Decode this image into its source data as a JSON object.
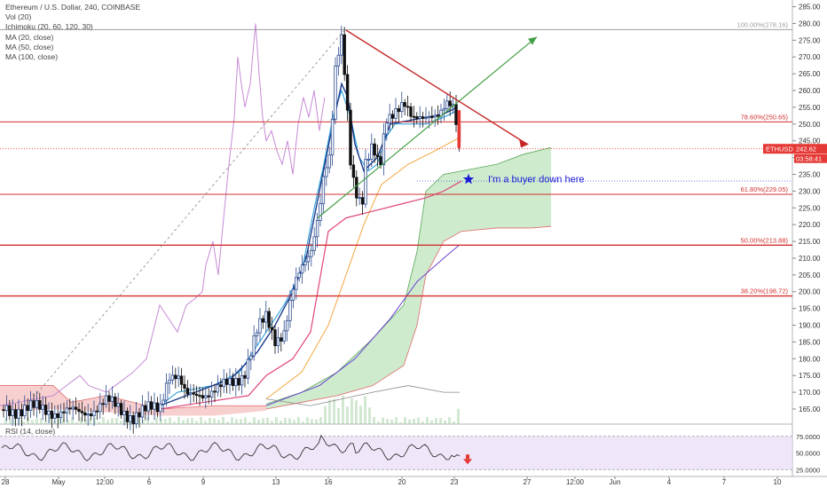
{
  "legend": {
    "symbol": "Ethereum / U.S. Dollar, 240, COINBASE",
    "vol": "Vol (20)",
    "ichimoku": "Ichimoku (20, 60, 120, 30)",
    "ma20": "MA (20, close)",
    "ma50": "MA (50, close)",
    "ma100": "MA (100, close)"
  },
  "rsi_label": "RSI (14, close)",
  "colors": {
    "up": "#2b4b8f",
    "down": "#111111",
    "ichimoku_cloud": "#b9e3b9",
    "ichimoku_cloud_red": "#f6c3c3",
    "ma20": "#1e9ad6",
    "ma50": "#f4a742",
    "ma100": "#6a3fd1",
    "lagging": "#c78ad6",
    "fib_line": "#d32f2f",
    "bear_arrow": "#c62828",
    "bull_arrow": "#43a047",
    "star": "#1a1ad6",
    "rsi_band": "#eadcf7",
    "rsi_line": "#333333",
    "price_tag": "#e53935"
  },
  "chart_data": {
    "type": "candlestick",
    "symbol": "ETHUSD",
    "interval": "240",
    "y_axis_ticks": [
      165.0,
      170.0,
      175.0,
      180.0,
      185.0,
      190.0,
      195.0,
      200.0,
      205.0,
      210.0,
      215.0,
      220.0,
      225.0,
      230.0,
      235.0,
      240.0,
      245.0,
      250.0,
      255.0,
      260.0,
      265.0,
      270.0,
      275.0,
      280.0,
      285.0
    ],
    "ylim": [
      160.5,
      287
    ],
    "x_axis_ticks": [
      "28",
      "May",
      "12:00",
      "6",
      "9",
      "13",
      "16",
      "20",
      "23",
      "27",
      "12:00",
      "Jun",
      "4",
      "7",
      "10"
    ],
    "last_price": "242.62",
    "last_symbol": "ETHUSD",
    "countdown": "03:58:41",
    "fib_levels": [
      {
        "label": "100.00%(278.16)",
        "value": 278.16
      },
      {
        "label": "78.60%(250.65)",
        "value": 250.65
      },
      {
        "label": "61.80%(229.05)",
        "value": 229.05
      },
      {
        "label": "50.00%(213.88)",
        "value": 213.88
      },
      {
        "label": "38.20%(198.72)",
        "value": 198.72
      }
    ],
    "annotation": "I'm a buyer down here",
    "rsi": {
      "ticks": [
        "75.0000",
        "50.0000",
        "25.0000"
      ],
      "last_signal": "down"
    },
    "price_path": [
      [
        2,
        "n",
        164.8
      ],
      [
        30,
        "n",
        165.2
      ],
      [
        60,
        "n",
        164.5
      ],
      [
        90,
        "n",
        163.5
      ],
      [
        120,
        "n",
        167.0
      ],
      [
        150,
        "n",
        163.0
      ],
      [
        180,
        "n",
        165.5
      ],
      [
        190,
        "n",
        176.0
      ],
      [
        200,
        "n",
        174.5
      ],
      [
        210,
        "n",
        168.0
      ],
      [
        225,
        "n",
        170.0
      ],
      [
        245,
        "n",
        170.5
      ],
      [
        260,
        "n",
        172.5
      ],
      [
        275,
        "n",
        176.0
      ],
      [
        290,
        "n",
        188.0
      ],
      [
        300,
        "n",
        192.0
      ],
      [
        310,
        "n",
        186.0
      ],
      [
        320,
        "n",
        188.5
      ],
      [
        330,
        "n",
        200.0
      ],
      [
        340,
        "n",
        206.0
      ],
      [
        350,
        "n",
        212.0
      ],
      [
        360,
        "n",
        226.0
      ],
      [
        365,
        "n",
        236.0
      ],
      [
        372,
        "n",
        240.0
      ],
      [
        378,
        "n",
        265.0
      ],
      [
        385,
        "n",
        275.0
      ],
      [
        390,
        "n",
        260.0
      ],
      [
        395,
        "n",
        240.0
      ],
      [
        400,
        "n",
        232.0
      ],
      [
        408,
        "n",
        226.0
      ],
      [
        412,
        "n",
        238.0
      ],
      [
        420,
        "n",
        242.0
      ],
      [
        428,
        "n",
        236.0
      ],
      [
        435,
        "n",
        252.0
      ],
      [
        445,
        "n",
        255.0
      ],
      [
        455,
        "n",
        256.0
      ],
      [
        465,
        "n",
        250.0
      ],
      [
        475,
        "n",
        252.0
      ],
      [
        485,
        "n",
        254.0
      ],
      [
        495,
        "n",
        253.0
      ],
      [
        505,
        "n",
        255.0
      ],
      [
        512,
        "n",
        253.5
      ],
      [
        518,
        "n",
        243.0
      ]
    ]
  }
}
